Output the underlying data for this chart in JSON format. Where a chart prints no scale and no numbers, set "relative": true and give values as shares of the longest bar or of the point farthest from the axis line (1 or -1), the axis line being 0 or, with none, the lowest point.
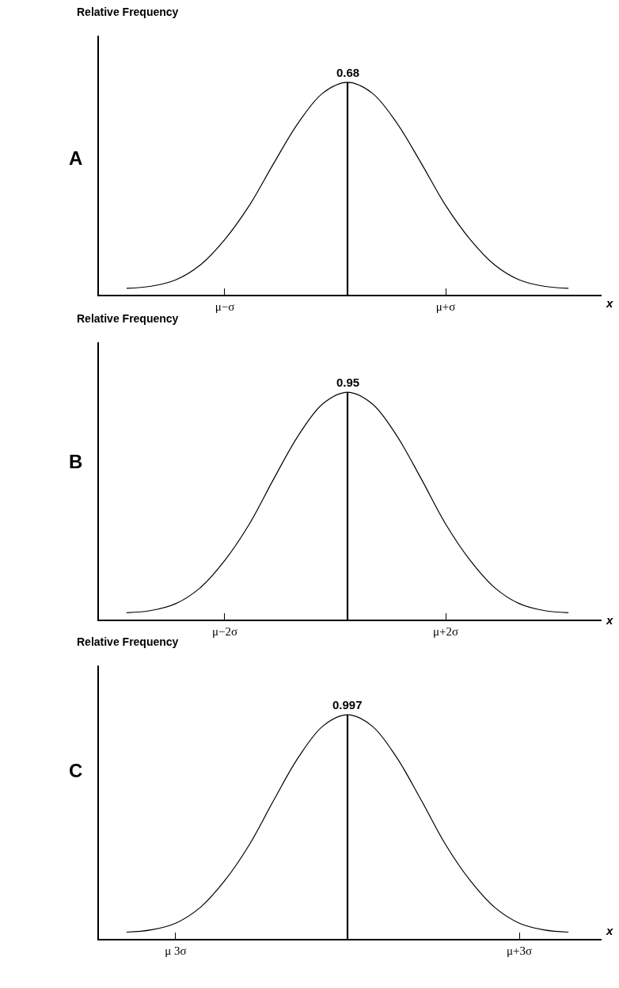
{
  "chart_data": [
    {
      "type": "line",
      "title": "A",
      "ylabel": "Relative Frequency",
      "xlabel": "x",
      "relative": true,
      "tick_labels": "x",
      "marker": "none",
      "line_style": "solid",
      "categories": [
        null,
        null,
        null,
        null,
        "μ−σ",
        null,
        null,
        null,
        null,
        null,
        null,
        null,
        null,
        "μ+σ",
        null,
        null,
        null,
        null,
        null
      ],
      "series": [
        {
          "color": "#000000",
          "values": [
            0.03,
            0.04,
            0.07,
            0.14,
            0.26,
            0.42,
            0.62,
            0.81,
            0.95,
            1,
            0.95,
            0.81,
            0.62,
            0.42,
            0.26,
            0.14,
            0.07,
            0.04,
            0.03
          ]
        },
        {
          "type": "bar",
          "color": "#000000",
          "values": [
            null,
            null,
            null,
            null,
            null,
            null,
            null,
            null,
            null,
            1,
            null,
            null,
            null,
            null,
            null,
            null,
            null,
            null,
            null
          ]
        }
      ],
      "annotations": [
        "0.68"
      ]
    },
    {
      "type": "line",
      "title": "B",
      "ylabel": "Relative Frequency",
      "xlabel": "x",
      "relative": true,
      "tick_labels": "x",
      "marker": "none",
      "line_style": "solid",
      "categories": [
        null,
        null,
        null,
        null,
        "μ−2σ",
        null,
        null,
        null,
        null,
        null,
        null,
        null,
        null,
        "μ+2σ",
        null,
        null,
        null,
        null,
        null
      ],
      "series": [
        {
          "color": "#000000",
          "values": [
            0.03,
            0.04,
            0.07,
            0.14,
            0.26,
            0.42,
            0.62,
            0.81,
            0.95,
            1,
            0.95,
            0.81,
            0.62,
            0.42,
            0.26,
            0.14,
            0.07,
            0.04,
            0.03
          ]
        },
        {
          "type": "bar",
          "color": "#000000",
          "values": [
            null,
            null,
            null,
            null,
            null,
            null,
            null,
            null,
            null,
            1,
            null,
            null,
            null,
            null,
            null,
            null,
            null,
            null,
            null
          ]
        }
      ],
      "annotations": [
        "0.95"
      ]
    },
    {
      "type": "line",
      "title": "C",
      "ylabel": "Relative Frequency",
      "xlabel": "x",
      "relative": true,
      "tick_labels": "x",
      "marker": "none",
      "line_style": "solid",
      "categories": [
        null,
        null,
        "μ 3σ",
        null,
        null,
        null,
        null,
        null,
        null,
        null,
        null,
        null,
        null,
        null,
        null,
        null,
        "μ+3σ",
        null,
        null
      ],
      "series": [
        {
          "color": "#000000",
          "values": [
            0.03,
            0.04,
            0.07,
            0.14,
            0.26,
            0.42,
            0.62,
            0.81,
            0.95,
            1,
            0.95,
            0.81,
            0.62,
            0.42,
            0.26,
            0.14,
            0.07,
            0.04,
            0.03
          ]
        },
        {
          "type": "bar",
          "color": "#000000",
          "values": [
            null,
            null,
            null,
            null,
            null,
            null,
            null,
            null,
            null,
            1,
            null,
            null,
            null,
            null,
            null,
            null,
            null,
            null,
            null
          ]
        }
      ],
      "annotations": [
        "0.997"
      ]
    }
  ]
}
